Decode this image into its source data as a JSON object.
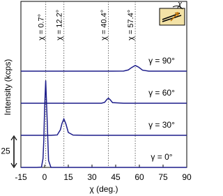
{
  "chart_data": {
    "type": "line",
    "x_label": "χ (deg.)",
    "y_label": "Intensity (kcps)",
    "x": [
      -15,
      -5,
      -2,
      -1,
      -0.5,
      0,
      0.7,
      1.5,
      2.5,
      4,
      8,
      10,
      11,
      12.2,
      13.5,
      15,
      18,
      25,
      36,
      38,
      39.5,
      40.4,
      41.5,
      43,
      50,
      53,
      55,
      57.4,
      59.5,
      62,
      66,
      80,
      90
    ],
    "series": [
      {
        "name": "γ = 0°",
        "color": "#1c1c8a",
        "values": [
          0,
          0,
          0.2,
          7,
          22,
          47,
          69,
          42,
          5.5,
          0,
          0,
          0,
          0,
          0,
          0,
          0,
          0,
          0,
          0,
          0,
          0,
          0,
          0,
          0,
          0,
          0,
          0,
          0,
          0,
          0,
          0,
          0,
          0
        ]
      },
      {
        "name": "γ = 30°",
        "color": "#1c1c8a",
        "values": [
          0,
          0,
          0,
          0,
          0,
          0,
          0,
          0,
          0,
          0,
          0.3,
          4.4,
          9.4,
          13,
          9,
          2.3,
          0.2,
          0,
          0,
          0,
          0,
          0,
          0,
          0,
          0,
          0,
          0,
          0,
          0,
          0,
          0,
          0,
          0
        ]
      },
      {
        "name": "γ = 60°",
        "color": "#1c1c8a",
        "values": [
          0,
          0,
          0,
          0,
          0,
          0,
          0,
          0,
          0,
          0,
          0,
          0,
          0,
          0,
          0,
          0,
          0,
          0,
          0,
          0.7,
          3.1,
          4,
          2.8,
          0.5,
          0,
          0,
          0,
          0,
          0,
          0,
          0,
          0,
          0
        ]
      },
      {
        "name": "γ = 90°",
        "color": "#1c1c8a",
        "values": [
          0,
          0,
          0,
          0,
          0,
          0,
          0,
          0,
          0,
          0,
          0,
          0,
          0,
          0,
          0,
          0,
          0,
          0,
          0,
          0,
          0,
          0,
          0,
          0,
          0.1,
          0.95,
          2.8,
          4.5,
          3.2,
          0.8,
          0,
          0,
          0
        ]
      }
    ],
    "markers": [
      {
        "value": 0.7,
        "label": "χ = 0.7°"
      },
      {
        "value": 12.2,
        "label": "χ = 12.2°"
      },
      {
        "value": 40.4,
        "label": "χ = 40.4°"
      },
      {
        "value": 57.4,
        "label": "χ = 57.4°"
      }
    ],
    "scale_bar": 25,
    "inset_label": "χ",
    "xlim": [
      -15,
      90
    ],
    "xticks": [
      -15,
      0,
      15,
      30,
      45,
      60,
      75,
      90
    ],
    "ylim": [
      0,
      132
    ]
  }
}
